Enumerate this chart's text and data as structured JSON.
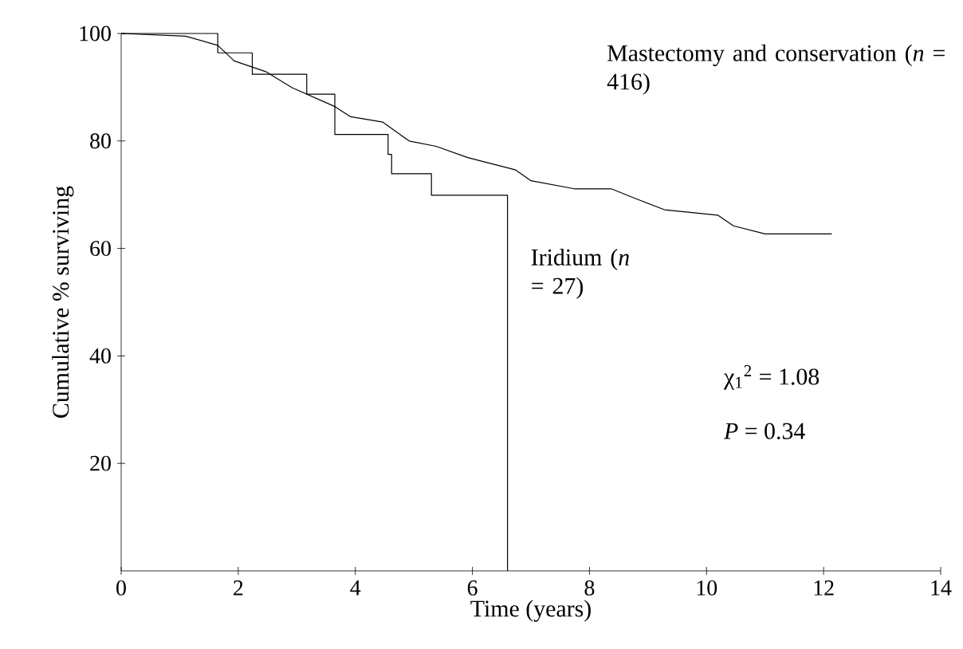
{
  "chart_data": {
    "type": "step",
    "xlabel": "Time (years)",
    "ylabel": "Cumulative % surviving",
    "xlim": [
      0,
      14
    ],
    "ylim": [
      0,
      100
    ],
    "xticks": [
      0,
      2,
      4,
      6,
      8,
      10,
      12,
      14
    ],
    "yticks": [
      20,
      40,
      60,
      80,
      100
    ],
    "grid": false,
    "legend": false,
    "marker": "none",
    "line_style": "solid",
    "series": [
      {
        "name": "Mastectomy and conservation (*n* = 416)",
        "type": "line",
        "color": "#000000",
        "x": [
          0,
          1.1,
          1.65,
          1.93,
          2.47,
          2.92,
          3.65,
          3.92,
          4.47,
          4.92,
          5.38,
          5.92,
          6.74,
          7.0,
          7.74,
          8.37,
          8.83,
          9.28,
          10.19,
          10.46,
          11.0,
          12.14
        ],
        "values": [
          100,
          99.5,
          97.8,
          94.9,
          92.9,
          89.9,
          86.4,
          84.5,
          83.5,
          80,
          79,
          76.9,
          74.6,
          72.6,
          71.1,
          71.1,
          69.1,
          67.2,
          66.2,
          64.2,
          62.7,
          62.7
        ]
      },
      {
        "name": "Iridium (*n* = 27)",
        "color": "#000000",
        "x": [
          0,
          1.65,
          2.24,
          3.17,
          3.65,
          4.56,
          4.62,
          5.3,
          6.6
        ],
        "values": [
          100,
          96.4,
          92.4,
          88.7,
          81.2,
          77.5,
          73.9,
          69.9,
          0
        ]
      }
    ],
    "annotations": [
      "χ$_{1}$$^{2}$ = 1.08",
      "*P* = 0.34"
    ]
  }
}
